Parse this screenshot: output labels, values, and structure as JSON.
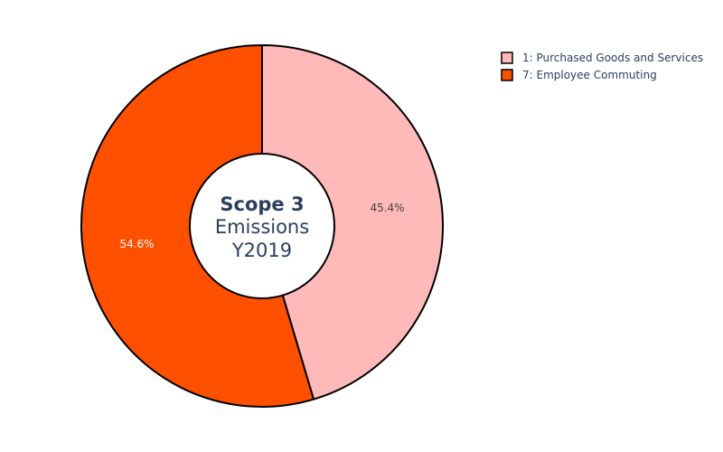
{
  "chart_data": {
    "type": "pie",
    "hole": true,
    "title_lines": [
      "Scope 3",
      "Emissions",
      "Y2019"
    ],
    "categories": [
      "1: Purchased Goods and Services",
      "7: Employee Commuting"
    ],
    "values": [
      45.4,
      54.6
    ],
    "labels": [
      "45.4%",
      "54.6%"
    ],
    "colors": [
      "#ffb9b9",
      "#ff5000"
    ],
    "label_colors": [
      "#444444",
      "#ffffff"
    ],
    "outline_color": "#000000",
    "legend_position": "top-right"
  }
}
